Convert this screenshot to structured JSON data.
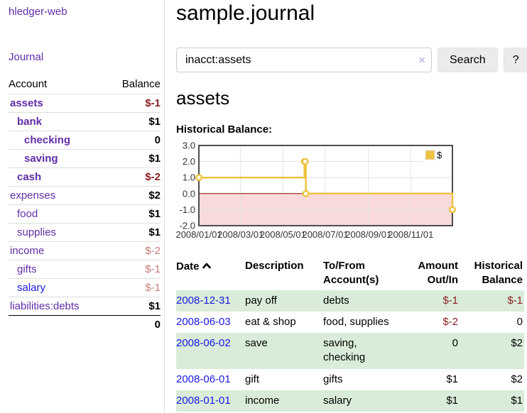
{
  "colors": {
    "link_purple": "#612da7",
    "link_blue": "#1a1ae6",
    "negative_strong": "#8c1e1e",
    "negative_soft": "#c97c78",
    "row_stripe_green": "#d9ecd9",
    "chart_series_gold": "#edc240",
    "chart_negative_bg": "#f9dada",
    "chart_zero_line": "#8b0000",
    "chart_border": "#4d4d4d",
    "chart_grid": "#e3e3e3"
  },
  "sidebar": {
    "app_title": "hledger-web",
    "journal_label": "Journal",
    "accounts": {
      "headers": {
        "account": "Account",
        "balance": "Balance"
      },
      "rows": [
        {
          "name": "assets",
          "balance": "$-1",
          "indent": 1,
          "bold": true,
          "neg": "strong",
          "link": "purple"
        },
        {
          "name": "bank",
          "balance": "$1",
          "indent": 2,
          "bold": true,
          "neg": "",
          "link": "purple"
        },
        {
          "name": "checking",
          "balance": "0",
          "indent": 3,
          "bold": true,
          "neg": "",
          "link": "purple"
        },
        {
          "name": "saving",
          "balance": "$1",
          "indent": 3,
          "bold": true,
          "neg": "",
          "link": "purple"
        },
        {
          "name": "cash",
          "balance": "$-2",
          "indent": 2,
          "bold": true,
          "neg": "strong",
          "link": "purple"
        },
        {
          "name": "expenses",
          "balance": "$2",
          "indent": 1,
          "bold": false,
          "neg": "",
          "link": "purple"
        },
        {
          "name": "food",
          "balance": "$1",
          "indent": 2,
          "bold": false,
          "neg": "",
          "link": "purple"
        },
        {
          "name": "supplies",
          "balance": "$1",
          "indent": 2,
          "bold": false,
          "neg": "",
          "link": "purple"
        },
        {
          "name": "income",
          "balance": "$-2",
          "indent": 1,
          "bold": false,
          "neg": "soft",
          "link": "purple"
        },
        {
          "name": "gifts",
          "balance": "$-1",
          "indent": 2,
          "bold": false,
          "neg": "soft",
          "link": "purple"
        },
        {
          "name": "salary",
          "balance": "$-1",
          "indent": 2,
          "bold": false,
          "neg": "soft",
          "link": "blue"
        },
        {
          "name": "liabilities:debts",
          "balance": "$1",
          "indent": 1,
          "bold": false,
          "neg": "",
          "link": "purple"
        }
      ],
      "total": "0"
    }
  },
  "header": {
    "title": "sample.journal"
  },
  "search": {
    "value": "inacct:assets",
    "clear_glyph": "×",
    "button_label": "Search",
    "help_label": "?"
  },
  "register": {
    "heading": "assets",
    "chart_label": "Historical Balance:",
    "table": {
      "headers": {
        "date": "Date",
        "description": "Description",
        "tofrom_line1": "To/From",
        "tofrom_line2": "Account(s)",
        "amount_line1": "Amount",
        "amount_line2": "Out/In",
        "balance_line1": "Historical",
        "balance_line2": "Balance"
      },
      "rows": [
        {
          "date": "2008-12-31",
          "description": "pay off",
          "accounts_lines": [
            "debts"
          ],
          "amount": "$-1",
          "amount_neg": true,
          "balance": "$-1",
          "balance_neg": true,
          "shade": true
        },
        {
          "date": "2008-06-03",
          "description": "eat & shop",
          "accounts_lines": [
            "food, supplies"
          ],
          "amount": "$-2",
          "amount_neg": true,
          "balance": "0",
          "balance_neg": false,
          "shade": false
        },
        {
          "date": "2008-06-02",
          "description": "save",
          "accounts_lines": [
            "saving,",
            "checking"
          ],
          "amount": "0",
          "amount_neg": false,
          "balance": "$2",
          "balance_neg": false,
          "shade": true
        },
        {
          "date": "2008-06-01",
          "description": "gift",
          "accounts_lines": [
            "gifts"
          ],
          "amount": "$1",
          "amount_neg": false,
          "balance": "$2",
          "balance_neg": false,
          "shade": false
        },
        {
          "date": "2008-01-01",
          "description": "income",
          "accounts_lines": [
            "salary"
          ],
          "amount": "$1",
          "amount_neg": false,
          "balance": "$1",
          "balance_neg": false,
          "shade": true
        }
      ]
    }
  },
  "chart_data": {
    "type": "line",
    "step": true,
    "title": "Historical Balance:",
    "legend": "$",
    "legend_position": "top-right",
    "series": [
      {
        "name": "$",
        "points": [
          [
            "2008-01-01",
            1
          ],
          [
            "2008-06-01",
            2
          ],
          [
            "2008-06-02",
            2
          ],
          [
            "2008-06-03",
            0
          ],
          [
            "2008-12-31",
            -1
          ]
        ]
      }
    ],
    "xlim": [
      "2008-01-01",
      "2008-12-31"
    ],
    "ylim": [
      -2,
      3
    ],
    "y_ticks": [
      3,
      2,
      1,
      0,
      -1,
      -2
    ],
    "x_ticks": [
      "2008/01/01",
      "2008/03/01",
      "2008/05/01",
      "2008/07/01",
      "2008/09/01",
      "2008/11/01"
    ],
    "grid": true,
    "negative_region_shaded": true
  }
}
